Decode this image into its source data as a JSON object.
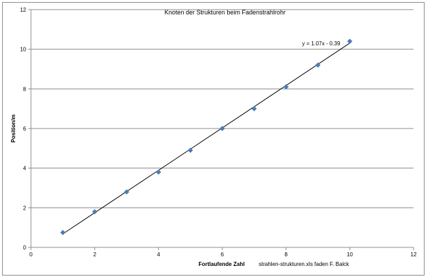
{
  "chart_data": {
    "type": "scatter",
    "title": "Knoten der Strukturen beim Fadenstrahlrohr",
    "xlabel": "Fortlaufende Zahl",
    "ylabel": "Position/m",
    "footnote": "strahlen-strukturen.xls faden F. Balck",
    "xlim": [
      0,
      12
    ],
    "ylim": [
      0,
      12
    ],
    "xticks": [
      0,
      2,
      4,
      6,
      8,
      10,
      12
    ],
    "yticks": [
      0,
      2,
      4,
      6,
      8,
      10,
      12
    ],
    "grid": "horizontal",
    "series": [
      {
        "x": [
          1,
          2,
          3,
          4,
          5,
          6,
          7,
          8,
          9,
          10
        ],
        "y": [
          0.75,
          1.8,
          2.8,
          3.8,
          4.9,
          6.0,
          7.0,
          8.1,
          9.2,
          10.4
        ]
      }
    ],
    "trendline": {
      "slope": 1.07,
      "intercept": -0.39,
      "x_range": [
        1,
        10
      ],
      "equation": "y = 1.07x - 0.39"
    },
    "colors": {
      "marker": "#4a7ebb",
      "line": "#000000",
      "grid": "#8c8c8c"
    }
  }
}
